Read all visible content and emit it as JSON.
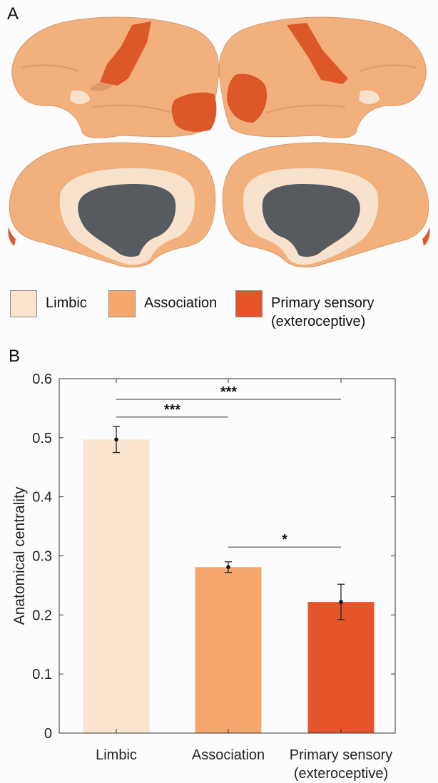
{
  "panel_a_label": "A",
  "panel_b_label": "B",
  "legend": [
    {
      "label": "Limbic",
      "sub": "",
      "color": "#fbe4cf"
    },
    {
      "label": "Association",
      "sub": "",
      "color": "#f6a76c"
    },
    {
      "label": "Primary sensory",
      "sub": "(exteroceptive)",
      "color": "#e6552a"
    }
  ],
  "colors": {
    "cortex_association": "#f2b07d",
    "cortex_limbic": "#f7e2cd",
    "cortex_primary": "#dd5828",
    "medial_wall": "#575a5e",
    "limbic_bar": "#fbe4cf",
    "association_bar": "#f6a76c",
    "primary_bar": "#e6552a"
  },
  "chart_data": {
    "type": "bar",
    "categories": [
      [
        "Limbic"
      ],
      [
        "Association"
      ],
      [
        "Primary sensory",
        "(exteroceptive)"
      ]
    ],
    "values": [
      0.497,
      0.281,
      0.222
    ],
    "error_low": [
      0.475,
      0.272,
      0.192
    ],
    "error_high": [
      0.519,
      0.29,
      0.252
    ],
    "ylabel": "Anatomical centrality",
    "ylim": [
      0,
      0.6
    ],
    "yticks": [
      "0",
      "0.1",
      "0.2",
      "0.3",
      "0.4",
      "0.5",
      "0.6"
    ],
    "grid": false,
    "significance": [
      {
        "from": 0,
        "to": 2,
        "label": "***",
        "y": 0.565
      },
      {
        "from": 0,
        "to": 1,
        "label": "***",
        "y": 0.535
      },
      {
        "from": 1,
        "to": 2,
        "label": "*",
        "y": 0.315
      }
    ]
  }
}
